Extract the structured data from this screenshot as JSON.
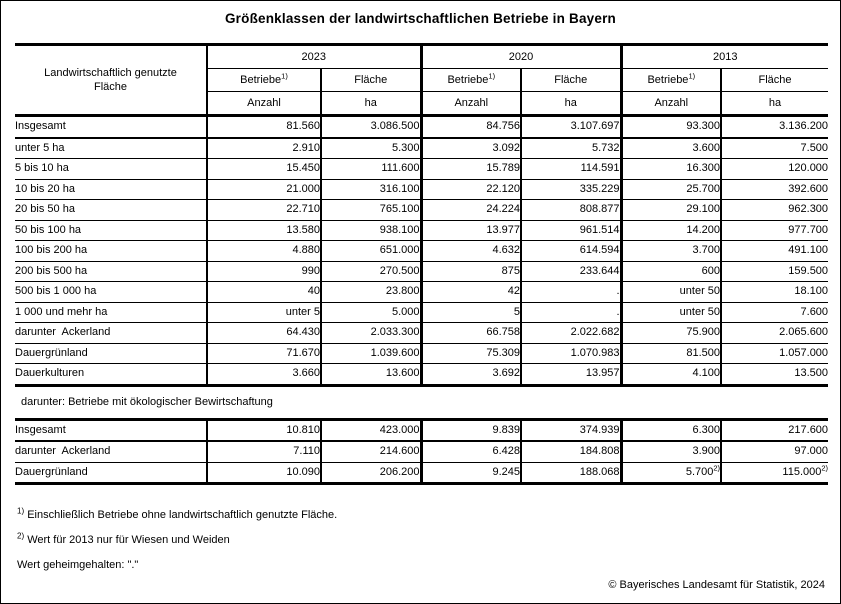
{
  "title": "Größenklassen der landwirtschaftlichen Betriebe in Bayern",
  "table": {
    "col_header": "Landwirtschaftlich genutzte Fläche",
    "years": [
      "2023",
      "2020",
      "2013"
    ],
    "sub": {
      "betriebe": "Betriebe",
      "betriebe_sup": "1)",
      "flaeche": "Fläche"
    },
    "units": {
      "anzahl": "Anzahl",
      "ha": "ha"
    },
    "section1_rows": [
      {
        "label": "Insgesamt",
        "indent": 0,
        "total": true,
        "values": [
          "81.560",
          "3.086.500",
          "84.756",
          "3.107.697",
          "93.300",
          "3.136.200"
        ]
      },
      {
        "label": "unter 5 ha",
        "indent": 0,
        "values": [
          "2.910",
          "5.300",
          "3.092",
          "5.732",
          "3.600",
          "7.500"
        ]
      },
      {
        "label": "5 bis 10 ha",
        "indent": 0,
        "values": [
          "15.450",
          "111.600",
          "15.789",
          "114.591",
          "16.300",
          "120.000"
        ]
      },
      {
        "label": "10 bis 20 ha",
        "indent": 0,
        "values": [
          "21.000",
          "316.100",
          "22.120",
          "335.229",
          "25.700",
          "392.600"
        ]
      },
      {
        "label": "20 bis 50 ha",
        "indent": 0,
        "values": [
          "22.710",
          "765.100",
          "24.224",
          "808.877",
          "29.100",
          "962.300"
        ]
      },
      {
        "label": "50 bis 100 ha",
        "indent": 0,
        "values": [
          "13.580",
          "938.100",
          "13.977",
          "961.514",
          "14.200",
          "977.700"
        ]
      },
      {
        "label": "100 bis 200 ha",
        "indent": 0,
        "values": [
          "4.880",
          "651.000",
          "4.632",
          "614.594",
          "3.700",
          "491.100"
        ]
      },
      {
        "label": "200 bis 500 ha",
        "indent": 0,
        "values": [
          "990",
          "270.500",
          "875",
          "233.644",
          "600",
          "159.500"
        ]
      },
      {
        "label": "500 bis 1 000 ha",
        "indent": 0,
        "values": [
          "40",
          "23.800",
          "42",
          ".",
          "unter 50",
          "18.100"
        ]
      },
      {
        "label": "1 000 und mehr ha",
        "indent": 0,
        "values": [
          "unter 5",
          "5.000",
          "5",
          ".",
          "unter 50",
          "7.600"
        ]
      },
      {
        "label": "darunter  Ackerland",
        "indent": 0,
        "values": [
          "64.430",
          "2.033.300",
          "66.758",
          "2.022.682",
          "75.900",
          "2.065.600"
        ]
      },
      {
        "label": "Dauergrünland",
        "indent": 2,
        "values": [
          "71.670",
          "1.039.600",
          "75.309",
          "1.070.983",
          "81.500",
          "1.057.000"
        ]
      },
      {
        "label": "Dauerkulturen",
        "indent": 2,
        "values": [
          "3.660",
          "13.600",
          "3.692",
          "13.957",
          "4.100",
          "13.500"
        ]
      }
    ],
    "band_label": "darunter: Betriebe mit ökologischer Bewirtschaftung",
    "section2_rows": [
      {
        "label": "Insgesamt",
        "indent": 1,
        "total": true,
        "values": [
          "10.810",
          "423.000",
          "9.839",
          "374.939",
          "6.300",
          "217.600"
        ]
      },
      {
        "label": "darunter  Ackerland",
        "indent": 1,
        "values": [
          "7.110",
          "214.600",
          "6.428",
          "184.808",
          "3.900",
          "97.000"
        ]
      },
      {
        "label": "Dauergrünland",
        "indent": 3,
        "values": [
          "10.090",
          "206.200",
          "9.245",
          "188.068",
          "5.700^2)",
          "115.000^2)"
        ]
      }
    ]
  },
  "footnotes": [
    {
      "marker": "1)",
      "text": "Einschließlich Betriebe ohne landwirtschaftlich genutzte Fläche."
    },
    {
      "marker": "2)",
      "text": "Wert für 2013 nur für Wiesen und Weiden"
    },
    {
      "marker": "",
      "text": "Wert geheimgehalten: \".\""
    }
  ],
  "copyright": "© Bayerisches Landesamt für Statistik, 2024"
}
